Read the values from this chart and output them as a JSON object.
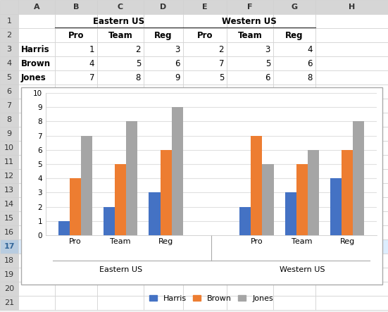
{
  "col_headers": [
    "",
    "A",
    "B",
    "C",
    "D",
    "E",
    "F",
    "G",
    "H"
  ],
  "row_headers": [
    "1",
    "2",
    "3",
    "4",
    "5",
    "6",
    "7",
    "8",
    "9",
    "10",
    "11",
    "12",
    "13",
    "14",
    "15",
    "16",
    "17",
    "18",
    "19",
    "20",
    "21"
  ],
  "table": {
    "row1": {
      "B_C_D": "Eastern US",
      "E_F_G": "Western US"
    },
    "row2": {
      "B": "Pro",
      "C": "Team",
      "D": "Reg",
      "E": "Pro",
      "F": "Team",
      "G": "Reg"
    },
    "row3": {
      "A": "Harris",
      "B": 1,
      "C": 2,
      "D": 3,
      "E": 2,
      "F": 3,
      "G": 4
    },
    "row4": {
      "A": "Brown",
      "B": 4,
      "C": 5,
      "D": 6,
      "E": 7,
      "F": 5,
      "G": 6
    },
    "row5": {
      "A": "Jones",
      "B": 7,
      "C": 8,
      "D": 9,
      "E": 5,
      "F": 6,
      "G": 8
    }
  },
  "series": {
    "Harris": {
      "color": "#4472C4",
      "values": [
        [
          1,
          2,
          3
        ],
        [
          2,
          3,
          4
        ]
      ]
    },
    "Brown": {
      "color": "#ED7D31",
      "values": [
        [
          4,
          5,
          6
        ],
        [
          7,
          5,
          6
        ]
      ]
    },
    "Jones": {
      "color": "#A5A5A5",
      "values": [
        [
          7,
          8,
          9
        ],
        [
          5,
          6,
          8
        ]
      ]
    }
  },
  "groups": [
    "Eastern US",
    "Western US"
  ],
  "subgroups": [
    "Pro",
    "Team",
    "Reg"
  ],
  "ylim": [
    0,
    10
  ],
  "yticks": [
    0,
    1,
    2,
    3,
    4,
    5,
    6,
    7,
    8,
    9,
    10
  ],
  "excel_bg": "#F2F2F2",
  "cell_bg": "#FFFFFF",
  "grid_line_color": "#D0D0D0",
  "header_bg": "#F2F2F2",
  "selected_row_bg": "#D6E4F0",
  "chart_bg": "#FFFFFF",
  "chart_grid_color": "#E0E0E0",
  "bar_width": 0.25,
  "figsize": [
    5.51,
    4.43
  ],
  "dpi": 100
}
